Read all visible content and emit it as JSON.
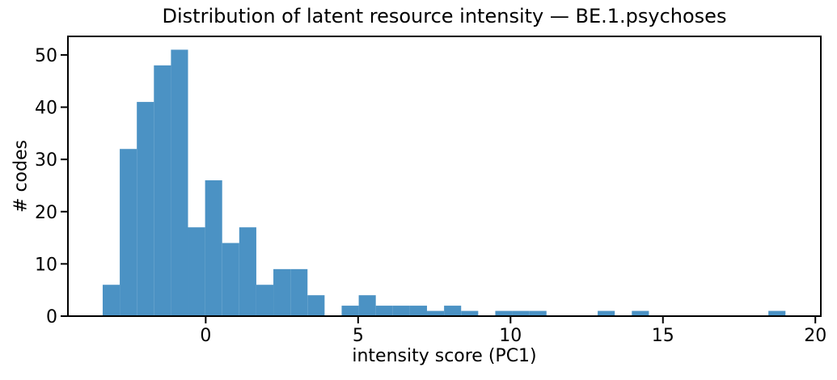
{
  "figure": {
    "title": "Distribution of latent resource intensity — BE.1.psychoses",
    "xlabel": "intensity score (PC1)",
    "ylabel": "# codes"
  },
  "chart_data": {
    "type": "bar",
    "subtype": "histogram",
    "title": "Distribution of latent resource intensity — BE.1.psychoses",
    "xlabel": "intensity score (PC1)",
    "ylabel": "# codes",
    "bin_start": -3.38,
    "bin_width": 0.56,
    "values": [
      6,
      32,
      41,
      48,
      51,
      17,
      26,
      14,
      17,
      6,
      9,
      9,
      4,
      0,
      2,
      4,
      2,
      2,
      2,
      1,
      2,
      1,
      0,
      1,
      1,
      1,
      0,
      0,
      0,
      1,
      0,
      1,
      0,
      0,
      0,
      0,
      0,
      0,
      0,
      1
    ],
    "xticks": [
      0,
      5,
      10,
      15,
      20
    ],
    "yticks": [
      0,
      10,
      20,
      30,
      40,
      50
    ],
    "xlim": [
      -4.52,
      20.18
    ],
    "ylim": [
      0,
      53.55
    ],
    "grid": false,
    "legend": null,
    "bar_color": "#4B92C4",
    "axis_color": "#000000"
  }
}
